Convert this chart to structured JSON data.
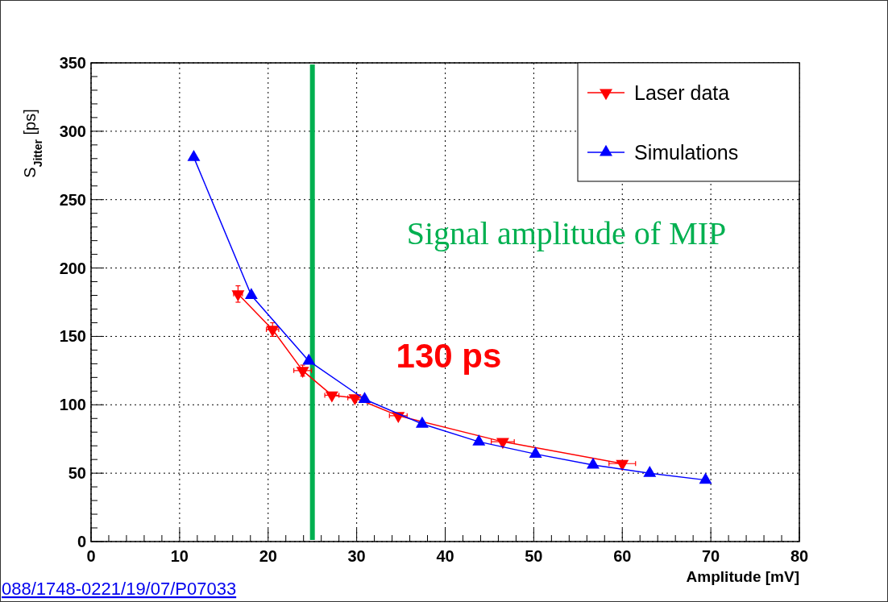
{
  "chart_data": {
    "type": "line",
    "xlabel": "Amplitude [mV]",
    "ylabel": "S$_{Jitter}$ [ps]",
    "xlim": [
      0,
      80
    ],
    "xticks": [
      0,
      10,
      20,
      30,
      40,
      50,
      60,
      70,
      80
    ],
    "ylim": [
      0,
      350
    ],
    "yticks": [
      0,
      50,
      100,
      150,
      200,
      250,
      300,
      350
    ],
    "grid": true,
    "legend": "top right",
    "series": [
      {
        "name": "Laser data",
        "color": "#ff0000",
        "marker": "triangle-down",
        "x": [
          16.6,
          20.5,
          23.9,
          27.2,
          29.8,
          34.7,
          46.5,
          60
        ],
        "values": [
          181,
          155,
          125,
          107,
          105,
          92,
          73,
          57
        ],
        "errors": [
          6,
          5,
          4,
          null,
          null,
          null,
          null,
          null
        ],
        "xerrors": [
          0.5,
          0.7,
          1,
          0.8,
          0.8,
          1,
          1.3,
          1.5
        ]
      },
      {
        "name": "Simulations",
        "color": "#0000ff",
        "marker": "triangle",
        "x": [
          11.6,
          18.1,
          24.6,
          30.9,
          37.4,
          43.8,
          50.2,
          56.7,
          63.1,
          69.4
        ],
        "values": [
          281,
          180,
          132,
          104,
          86,
          73,
          64,
          56,
          50,
          45
        ]
      }
    ],
    "ref_lines": [
      {
        "axis": "x",
        "value": 25,
        "color": "#00b050"
      }
    ],
    "annotations": [
      "Signal amplitude of MIP",
      "130 ps",
      "088/1748-0221/19/07/P07033"
    ]
  }
}
